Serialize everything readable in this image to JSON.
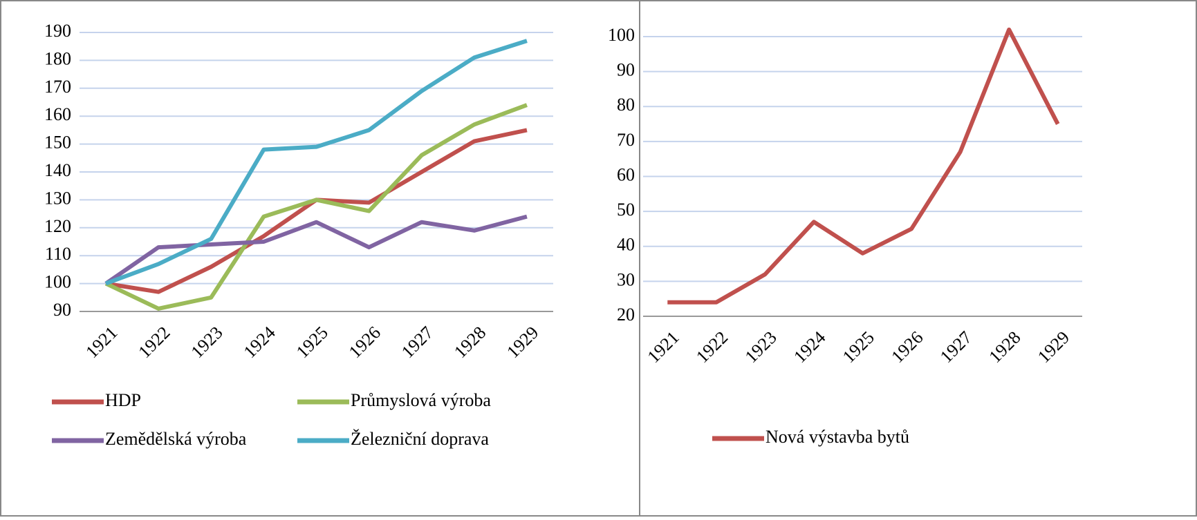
{
  "chart_data": [
    {
      "type": "line",
      "categories": [
        "1921",
        "1922",
        "1923",
        "1924",
        "1925",
        "1926",
        "1927",
        "1928",
        "1929"
      ],
      "series": [
        {
          "name": "HDP",
          "color": "#c0504d",
          "values": [
            100,
            97,
            106,
            117,
            130,
            129,
            140,
            151,
            155
          ]
        },
        {
          "name": "Průmyslová výroba",
          "color": "#9bbb59",
          "values": [
            100,
            91,
            95,
            124,
            130,
            126,
            146,
            157,
            164
          ]
        },
        {
          "name": "Zemědělská výroba",
          "color": "#8064a2",
          "values": [
            100,
            113,
            114,
            115,
            122,
            113,
            122,
            119,
            124
          ]
        },
        {
          "name": "Železniční doprava",
          "color": "#4bacc6",
          "values": [
            100,
            107,
            116,
            148,
            149,
            155,
            169,
            181,
            187
          ]
        }
      ],
      "ylim": [
        90,
        190
      ],
      "yticks": [
        90,
        100,
        110,
        120,
        130,
        140,
        150,
        160,
        170,
        180,
        190
      ],
      "grid": true
    },
    {
      "type": "line",
      "categories": [
        "1921",
        "1922",
        "1923",
        "1924",
        "1925",
        "1926",
        "1927",
        "1928",
        "1929"
      ],
      "series": [
        {
          "name": "Nová výstavba bytů",
          "color": "#c0504d",
          "values": [
            24,
            24,
            32,
            47,
            38,
            45,
            67,
            102,
            75
          ]
        }
      ],
      "ylim": [
        20,
        100
      ],
      "yticks": [
        20,
        30,
        40,
        50,
        60,
        70,
        80,
        90,
        100
      ],
      "grid": true
    }
  ]
}
